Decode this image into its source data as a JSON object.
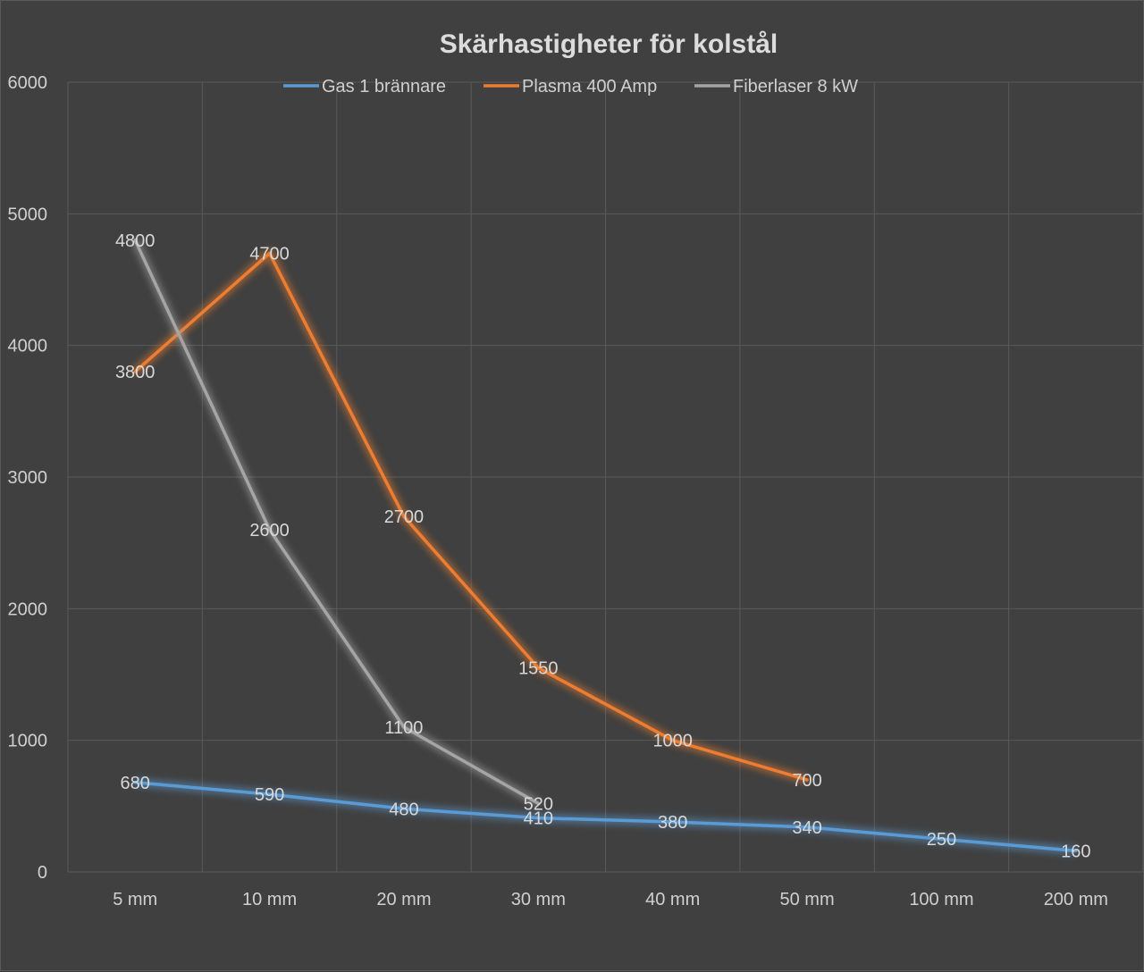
{
  "chart_data": {
    "type": "line",
    "title": "Skärhastigheter för kolstål",
    "xlabel": "",
    "ylabel": "",
    "categories": [
      "5 mm",
      "10 mm",
      "20 mm",
      "30 mm",
      "40 mm",
      "50 mm",
      "100 mm",
      "200 mm"
    ],
    "ylim": [
      0,
      6000
    ],
    "yticks": [
      "0",
      "1000",
      "2000",
      "3000",
      "4000",
      "5000",
      "6000"
    ],
    "grid": true,
    "legend_position": "top",
    "series": [
      {
        "name": "Gas 1 brännare",
        "color": "#5b9bd5",
        "values": [
          680,
          590,
          480,
          410,
          380,
          340,
          250,
          160
        ],
        "labels": [
          "680",
          "590",
          "480",
          "410",
          "380",
          "340",
          "250",
          "160"
        ]
      },
      {
        "name": "Plasma 400 Amp",
        "color": "#ed7d31",
        "values": [
          3800,
          4700,
          2700,
          1550,
          1000,
          700,
          null,
          null
        ],
        "labels": [
          "3800",
          "4700",
          "2700",
          "1550",
          "1000",
          "700",
          "",
          ""
        ]
      },
      {
        "name": "Fiberlaser 8 kW",
        "color": "#a5a5a5",
        "values": [
          4800,
          2600,
          1100,
          520,
          null,
          null,
          null,
          null
        ],
        "labels": [
          "4800",
          "2600",
          "1100",
          "520",
          "",
          "",
          "",
          ""
        ]
      }
    ]
  }
}
